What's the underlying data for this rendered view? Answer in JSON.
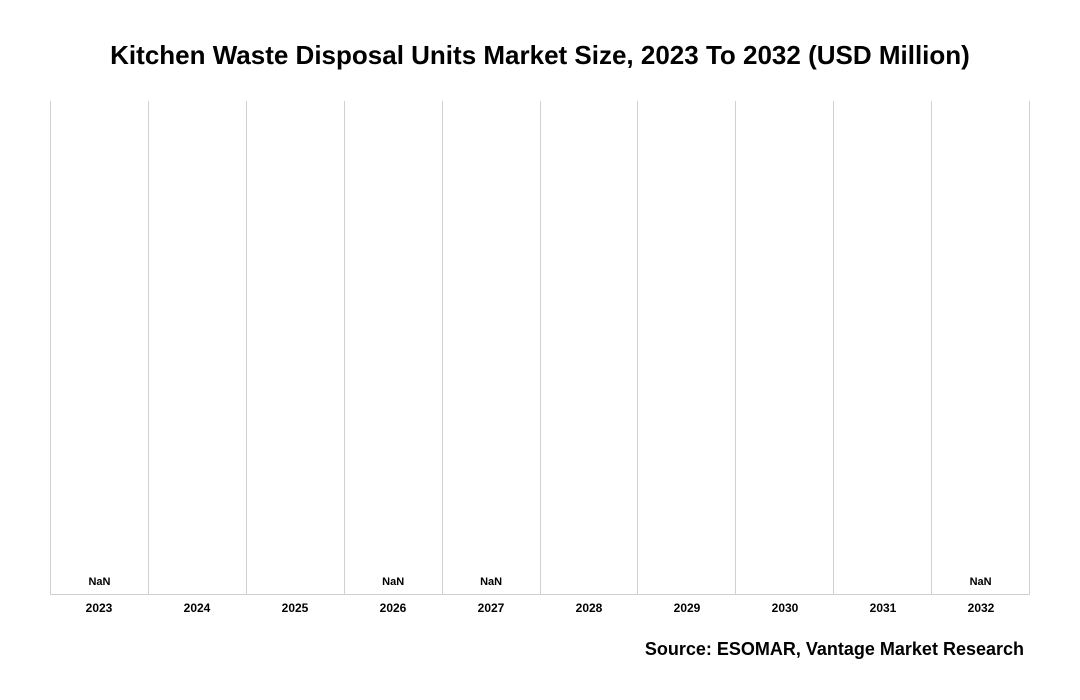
{
  "chart": {
    "type": "bar",
    "title": "Kitchen Waste Disposal Units Market Size, 2023 To 2032 (USD Million)",
    "title_fontsize": 26,
    "title_fontweight": 700,
    "title_color": "#000000",
    "background_color": "#ffffff",
    "grid_color": "#d0d0d0",
    "plot_border_color": "#d0d0d0",
    "x_axis": {
      "categories": [
        "2023",
        "2024",
        "2025",
        "2026",
        "2027",
        "2028",
        "2029",
        "2030",
        "2031",
        "2032"
      ],
      "tick_fontsize": 12,
      "tick_fontweight": 700,
      "tick_color": "#000000"
    },
    "y_axis": {
      "ylim": [
        0,
        1
      ],
      "ticks": [],
      "visible": false
    },
    "series": {
      "name": "Market Size",
      "values": [
        null,
        null,
        null,
        null,
        null,
        null,
        null,
        null,
        null,
        null
      ],
      "bar_color": null,
      "bar_width": 0.7,
      "value_labels": [
        "NaN",
        "",
        "",
        "NaN",
        "NaN",
        "",
        "",
        "",
        "",
        "NaN"
      ],
      "value_label_fontsize": 11,
      "value_label_fontweight": 700,
      "value_label_color": "#000000"
    },
    "source": "Source: ESOMAR, Vantage Market Research",
    "source_fontsize": 18,
    "source_fontweight": 700,
    "source_color": "#000000",
    "aspect_width": 1080,
    "aspect_height": 700
  }
}
